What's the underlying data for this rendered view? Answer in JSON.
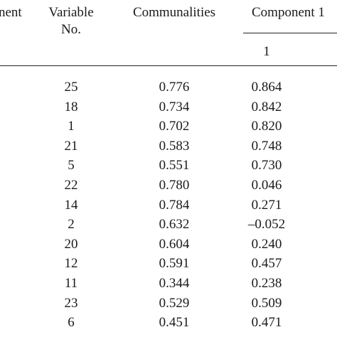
{
  "table": {
    "headers": {
      "factor_fragment": "nent",
      "variable_no_line1": "Variable",
      "variable_no_line2": "No.",
      "communalities": "Communalities",
      "component": "Component 1",
      "component_sub_1": "1"
    },
    "rows": [
      {
        "variable": "25",
        "communality": "0.776",
        "component_1": "0.864"
      },
      {
        "variable": "18",
        "communality": "0.734",
        "component_1": "0.842"
      },
      {
        "variable": "1",
        "communality": "0.702",
        "component_1": "0.820"
      },
      {
        "variable": "21",
        "communality": "0.583",
        "component_1": "0.748"
      },
      {
        "variable": "5",
        "communality": "0.551",
        "component_1": "0.730"
      },
      {
        "variable": "22",
        "communality": "0.780",
        "component_1": "0.046"
      },
      {
        "variable": "14",
        "communality": "0.784",
        "component_1": "0.271"
      },
      {
        "variable": "2",
        "communality": "0.632",
        "component_1": "–0.052"
      },
      {
        "variable": "20",
        "communality": "0.604",
        "component_1": "0.240"
      },
      {
        "variable": "12",
        "communality": "0.591",
        "component_1": "0.457"
      },
      {
        "variable": "11",
        "communality": "0.344",
        "component_1": "0.238"
      },
      {
        "variable": "23",
        "communality": "0.529",
        "component_1": "0.509"
      },
      {
        "variable": "6",
        "communality": "0.451",
        "component_1": "0.471"
      }
    ]
  }
}
